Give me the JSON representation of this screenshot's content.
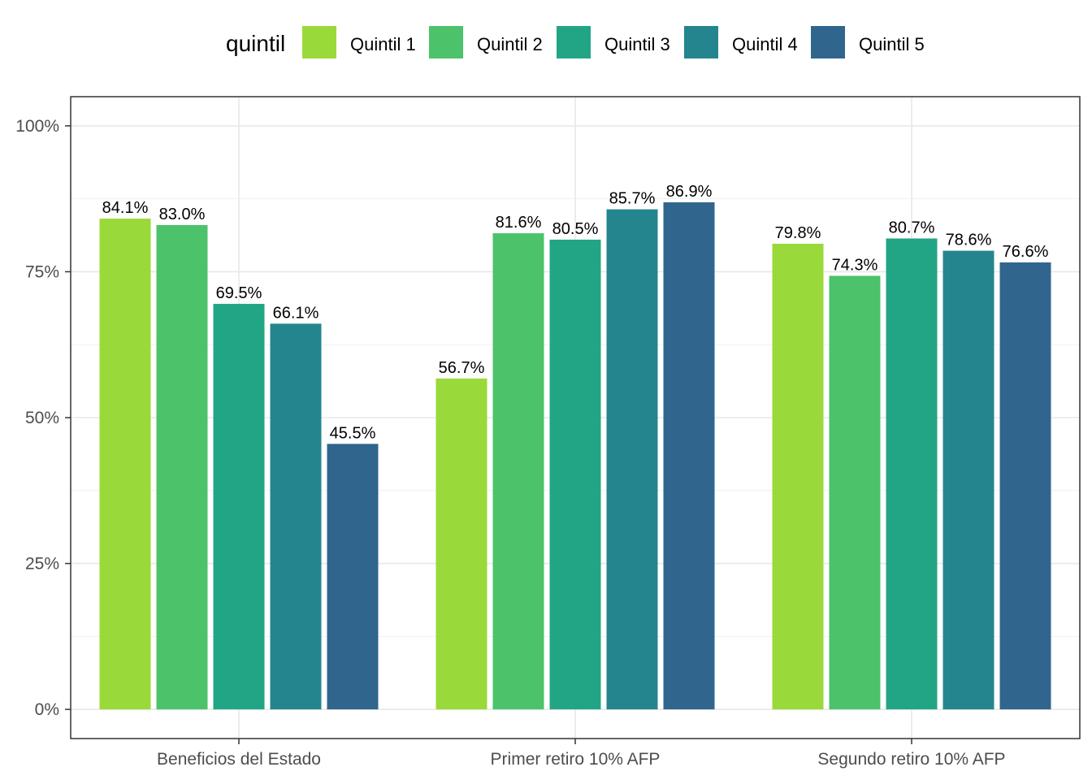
{
  "chart_data": {
    "type": "bar",
    "legend_title": "quintil",
    "legend_position": "top",
    "grid": true,
    "categories": [
      "Beneficios del Estado",
      "Primer retiro 10% AFP",
      "Segundo retiro 10% AFP"
    ],
    "series": [
      {
        "name": "Quintil 1",
        "color": "#9ad93a",
        "values": [
          84.1,
          56.7,
          79.8
        ],
        "labels": [
          "84.1%",
          "56.7%",
          "79.8%"
        ]
      },
      {
        "name": "Quintil 2",
        "color": "#4cc36a",
        "values": [
          83.0,
          81.6,
          74.3
        ],
        "labels": [
          "83.0%",
          "81.6%",
          "74.3%"
        ]
      },
      {
        "name": "Quintil 3",
        "color": "#22a585",
        "values": [
          69.5,
          80.5,
          80.7
        ],
        "labels": [
          "69.5%",
          "80.5%",
          "80.7%"
        ]
      },
      {
        "name": "Quintil 4",
        "color": "#25858e",
        "values": [
          66.1,
          85.7,
          78.6
        ],
        "labels": [
          "66.1%",
          "85.7%",
          "78.6%"
        ]
      },
      {
        "name": "Quintil 5",
        "color": "#30668d",
        "values": [
          45.5,
          86.9,
          76.6
        ],
        "labels": [
          "45.5%",
          "86.9%",
          "76.6%"
        ]
      }
    ],
    "ylim": [
      -5,
      105
    ],
    "yticks": [
      0,
      25,
      50,
      75,
      100
    ],
    "ytick_labels": [
      "0%",
      "25%",
      "50%",
      "75%",
      "100%"
    ]
  }
}
